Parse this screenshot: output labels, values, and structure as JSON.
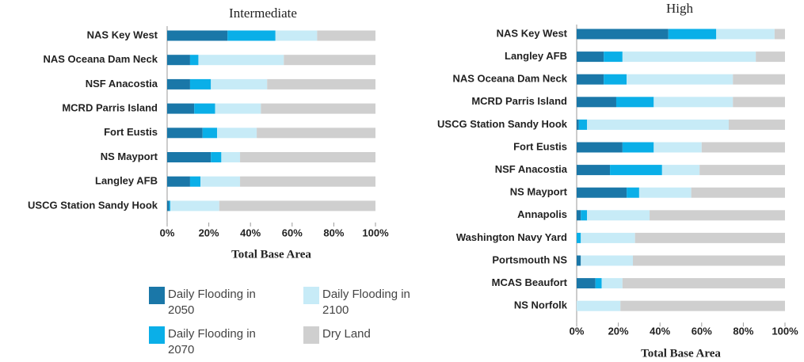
{
  "chart_data": [
    {
      "type": "stacked_barh",
      "title": "Intermediate",
      "xlabel": "Total Base Area",
      "categories": [
        "NAS Key West",
        "NAS Oceana Dam Neck",
        "NSF Anacostia",
        "MCRD Parris Island",
        "Fort Eustis",
        "NS Mayport",
        "Langley AFB",
        "USCG Station Sandy Hook"
      ],
      "series": [
        {
          "name": "Daily Flooding in 2050",
          "color": "#1a77a8",
          "values": [
            29,
            11,
            11,
            13,
            17,
            21,
            11,
            1
          ]
        },
        {
          "name": "Daily Flooding in 2070",
          "color": "#0aafe8",
          "values": [
            23,
            4,
            10,
            10,
            7,
            5,
            5,
            0.5
          ]
        },
        {
          "name": "Daily Flooding in 2100",
          "color": "#c7ebf7",
          "values": [
            20,
            41,
            27,
            22,
            19,
            9,
            19,
            23.5
          ]
        },
        {
          "name": "Dry Land",
          "color": "#cfcfcf",
          "values": [
            28,
            44,
            52,
            55,
            57,
            65,
            65,
            75
          ]
        }
      ],
      "xlim": [
        0,
        100
      ],
      "xticks": [
        {
          "value": 0,
          "label": "0%"
        },
        {
          "value": 20,
          "label": "20%"
        },
        {
          "value": 40,
          "label": "40%"
        },
        {
          "value": 60,
          "label": "60%"
        },
        {
          "value": 80,
          "label": "80%"
        },
        {
          "value": 100,
          "label": "100%"
        }
      ]
    },
    {
      "type": "stacked_barh",
      "title": "High",
      "xlabel": "Total Base Area",
      "categories": [
        "NAS Key West",
        "Langley AFB",
        "NAS Oceana Dam Neck",
        "MCRD Parris Island",
        "USCG Station Sandy Hook",
        "Fort Eustis",
        "NSF Anacostia",
        "NS Mayport",
        "Annapolis",
        "Washington Navy Yard",
        "Portsmouth NS",
        "MCAS Beaufort",
        "NS Norfolk"
      ],
      "series": [
        {
          "color": "#1a77a8",
          "values": [
            44,
            13,
            13,
            19,
            1,
            22,
            16,
            24,
            2,
            0,
            2,
            9,
            0
          ]
        },
        {
          "color": "#0aafe8",
          "values": [
            23,
            9,
            11,
            18,
            4,
            15,
            25,
            6,
            3,
            2,
            0,
            3,
            0
          ]
        },
        {
          "color": "#c7ebf7",
          "values": [
            28,
            64,
            51,
            38,
            68,
            23,
            18,
            25,
            30,
            26,
            25,
            10,
            21
          ]
        },
        {
          "color": "#cfcfcf",
          "values": [
            5,
            14,
            25,
            25,
            27,
            40,
            41,
            45,
            65,
            72,
            73,
            78,
            79
          ]
        }
      ],
      "xlim": [
        0,
        100
      ],
      "xticks": [
        {
          "value": 0,
          "label": "0%"
        },
        {
          "value": 20,
          "label": "20%"
        },
        {
          "value": 40,
          "label": "40%"
        },
        {
          "value": 60,
          "label": "60%"
        },
        {
          "value": 80,
          "label": "80%"
        },
        {
          "value": 100,
          "label": "100%"
        }
      ]
    }
  ]
}
